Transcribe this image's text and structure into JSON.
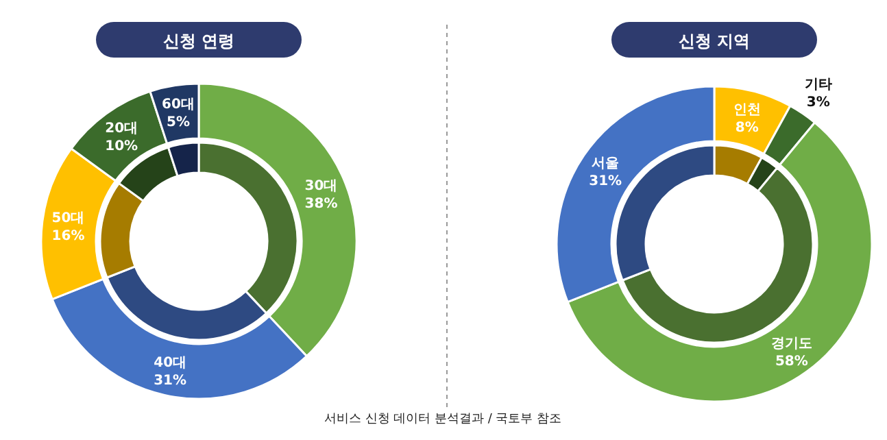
{
  "chart_data": [
    {
      "type": "donut",
      "title": "신청 연령",
      "categories": [
        "30대",
        "40대",
        "50대",
        "20대",
        "60대"
      ],
      "series": [
        {
          "values": [
            38,
            31,
            16,
            10,
            5
          ],
          "colors": [
            "#70ad47",
            "#4472c4",
            "#ffc000",
            "#3b6b2b",
            "#203864"
          ],
          "value_labels": [
            "38%",
            "31%",
            "16%",
            "10%",
            "5%"
          ]
        },
        {
          "values": [
            38,
            31,
            16,
            10,
            5
          ],
          "colors": [
            "#4a7030",
            "#2e4a82",
            "#a67c00",
            "#254319",
            "#15244a"
          ]
        }
      ],
      "annotations": [
        "서비스 신청 데이터 분석결과 / 국토부 참조"
      ]
    },
    {
      "type": "donut",
      "title": "신청 지역",
      "categories": [
        "인천",
        "기타",
        "경기도",
        "서울"
      ],
      "series": [
        {
          "values": [
            8,
            3,
            58,
            31
          ],
          "colors": [
            "#ffc000",
            "#3b6b2b",
            "#70ad47",
            "#4472c4"
          ],
          "value_labels": [
            "8%",
            "3%",
            "58%",
            "31%"
          ]
        },
        {
          "values": [
            8,
            3,
            58,
            31
          ],
          "colors": [
            "#a67c00",
            "#254319",
            "#4a7030",
            "#2e4a82"
          ]
        }
      ]
    }
  ]
}
